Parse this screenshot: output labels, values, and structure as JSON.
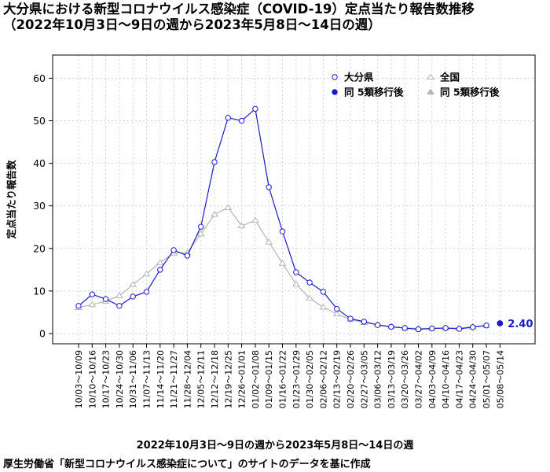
{
  "title_line1": "大分県における新型コロナウイルス感染症（COVID-19）定点当たり報告数推移",
  "title_line2": "（2022年10月3日～9日の週から2023年5月8日～14日の週）",
  "source_note": "厚生労働省「新型コロナウイルス感染症について」のサイトのデータを基に作成",
  "colors": {
    "oita": "#1a1acd",
    "national": "#b4b4b4"
  },
  "chart_data": {
    "type": "line",
    "xlabel": "2022年10月3日～9日の週から2023年5月8日～14日の週",
    "ylabel": "定点当たり報告数",
    "ylim": [
      0,
      65
    ],
    "yticks": [
      0,
      10,
      20,
      30,
      40,
      50,
      60
    ],
    "grid": true,
    "legend_position": "top-right",
    "categories": [
      "10/03～10/09",
      "10/10～10/16",
      "10/17～10/23",
      "10/24～10/30",
      "10/31～11/06",
      "11/07～11/13",
      "11/14～11/20",
      "11/21～11/27",
      "11/28～12/04",
      "12/05～12/11",
      "12/12～12/18",
      "12/19～12/25",
      "12/26～01/01",
      "01/02～01/08",
      "01/09～01/15",
      "01/16～01/22",
      "01/23～01/29",
      "01/30～02/05",
      "02/06～02/12",
      "02/13～02/19",
      "02/20～02/26",
      "02/27～03/05",
      "03/06～03/12",
      "03/13～03/19",
      "03/20～03/26",
      "03/27～04/02",
      "04/03～04/09",
      "04/10～04/16",
      "04/17～04/23",
      "04/24～04/30",
      "05/01～05/07",
      "05/08～05/14"
    ],
    "series": [
      {
        "name": "大分県",
        "marker": "open-circle",
        "values": [
          6.5,
          9.2,
          8.1,
          6.5,
          8.7,
          9.8,
          15.0,
          19.6,
          18.3,
          25.1,
          40.3,
          50.7,
          50.0,
          52.8,
          34.4,
          24.0,
          14.4,
          12.0,
          9.8,
          5.8,
          3.5,
          2.8,
          2.0,
          1.6,
          1.3,
          1.0,
          1.2,
          1.3,
          1.1,
          1.5,
          1.9,
          null
        ]
      },
      {
        "name": "全国",
        "marker": "open-triangle",
        "values": [
          6.1,
          6.8,
          7.6,
          8.9,
          11.5,
          14.0,
          16.7,
          18.9,
          19.0,
          23.4,
          28.0,
          29.6,
          25.3,
          26.6,
          21.5,
          16.5,
          11.6,
          8.3,
          6.2,
          4.6,
          3.3,
          2.6,
          2.1,
          1.6,
          1.3,
          1.2,
          1.2,
          1.3,
          1.3,
          1.6,
          1.9,
          null
        ]
      },
      {
        "name": "同 5類移行後",
        "marker": "filled-circle",
        "values": [
          null,
          null,
          null,
          null,
          null,
          null,
          null,
          null,
          null,
          null,
          null,
          null,
          null,
          null,
          null,
          null,
          null,
          null,
          null,
          null,
          null,
          null,
          null,
          null,
          null,
          null,
          null,
          null,
          null,
          null,
          null,
          2.4
        ]
      },
      {
        "name": "同 5類移行後",
        "marker": "filled-triangle",
        "values": [
          null,
          null,
          null,
          null,
          null,
          null,
          null,
          null,
          null,
          null,
          null,
          null,
          null,
          null,
          null,
          null,
          null,
          null,
          null,
          null,
          null,
          null,
          null,
          null,
          null,
          null,
          null,
          null,
          null,
          null,
          null,
          null
        ]
      }
    ],
    "annotation": "2.40"
  }
}
